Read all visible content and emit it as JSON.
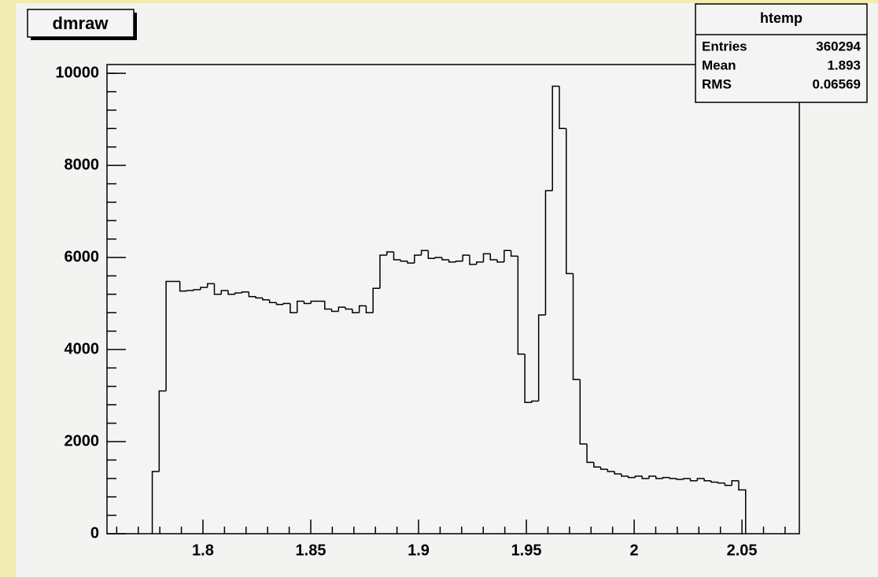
{
  "chart_data": {
    "type": "histogram",
    "title": "dmraw",
    "bins": [
      1.7765,
      1.7797,
      1.7829,
      1.7861,
      1.7893,
      1.7925,
      1.7957,
      1.7989,
      1.8021,
      1.8053,
      1.8085,
      1.8117,
      1.8149,
      1.8181,
      1.8213,
      1.8245,
      1.8277,
      1.8309,
      1.8341,
      1.8373,
      1.8405,
      1.8437,
      1.8469,
      1.8501,
      1.8533,
      1.8565,
      1.8597,
      1.8629,
      1.8661,
      1.8693,
      1.8725,
      1.8757,
      1.8789,
      1.8821,
      1.8853,
      1.8885,
      1.8917,
      1.8949,
      1.8981,
      1.9013,
      1.9045,
      1.9077,
      1.9109,
      1.9141,
      1.9173,
      1.9205,
      1.9237,
      1.9269,
      1.9301,
      1.9333,
      1.9365,
      1.9397,
      1.9429,
      1.9461,
      1.9493,
      1.9525,
      1.9557,
      1.9589,
      1.9621,
      1.9653,
      1.9685,
      1.9717,
      1.9749,
      1.9781,
      1.9813,
      1.9845,
      1.9877,
      1.9909,
      1.9941,
      1.9973,
      2.0005,
      2.0037,
      2.0069,
      2.0101,
      2.0133,
      2.0165,
      2.0197,
      2.0229,
      2.0261,
      2.0293,
      2.0325,
      2.0357,
      2.0389,
      2.0421,
      2.0453,
      2.0485,
      2.0517
    ],
    "values": [
      1350,
      3100,
      5480,
      5480,
      5270,
      5280,
      5300,
      5350,
      5430,
      5200,
      5280,
      5200,
      5230,
      5250,
      5150,
      5120,
      5080,
      5020,
      4980,
      5000,
      4800,
      5050,
      5000,
      5050,
      5050,
      4880,
      4830,
      4920,
      4880,
      4800,
      4950,
      4800,
      5330,
      6050,
      6120,
      5950,
      5920,
      5880,
      6050,
      6150,
      5980,
      6000,
      5950,
      5900,
      5920,
      6050,
      5850,
      5900,
      6080,
      5950,
      5900,
      6150,
      6030,
      3900,
      2850,
      2880,
      4750,
      7450,
      9720,
      8800,
      5650,
      3350,
      1950,
      1550,
      1450,
      1400,
      1350,
      1300,
      1250,
      1220,
      1250,
      1200,
      1250,
      1200,
      1220,
      1200,
      1180,
      1200,
      1150,
      1200,
      1150,
      1120,
      1100,
      1050,
      1150,
      950
    ],
    "color": "#000000",
    "xlim": [
      1.7555,
      2.0766
    ],
    "xticks": [
      1.8,
      1.85,
      1.9,
      1.95,
      2,
      2.05
    ],
    "xminorticks": [
      1.76,
      1.77,
      1.78,
      1.79,
      1.81,
      1.82,
      1.83,
      1.84,
      1.86,
      1.87,
      1.88,
      1.89,
      1.91,
      1.92,
      1.93,
      1.94,
      1.96,
      1.97,
      1.98,
      1.99,
      2.01,
      2.02,
      2.03,
      2.04,
      2.06,
      2.07
    ],
    "ylim": [
      0,
      10190
    ],
    "yticks": [
      0,
      2000,
      4000,
      6000,
      8000,
      10000
    ],
    "yminorticks": [
      400,
      800,
      1200,
      1600,
      2400,
      2800,
      3200,
      3600,
      4400,
      4800,
      5200,
      5600,
      6400,
      6800,
      7200,
      7600,
      8400,
      8800,
      9200,
      9600,
      10000
    ]
  },
  "stats_box": {
    "title": "htemp",
    "rows": [
      [
        "Entries",
        360294
      ],
      [
        "Mean",
        1.893
      ],
      [
        "RMS",
        0.06569
      ]
    ]
  }
}
